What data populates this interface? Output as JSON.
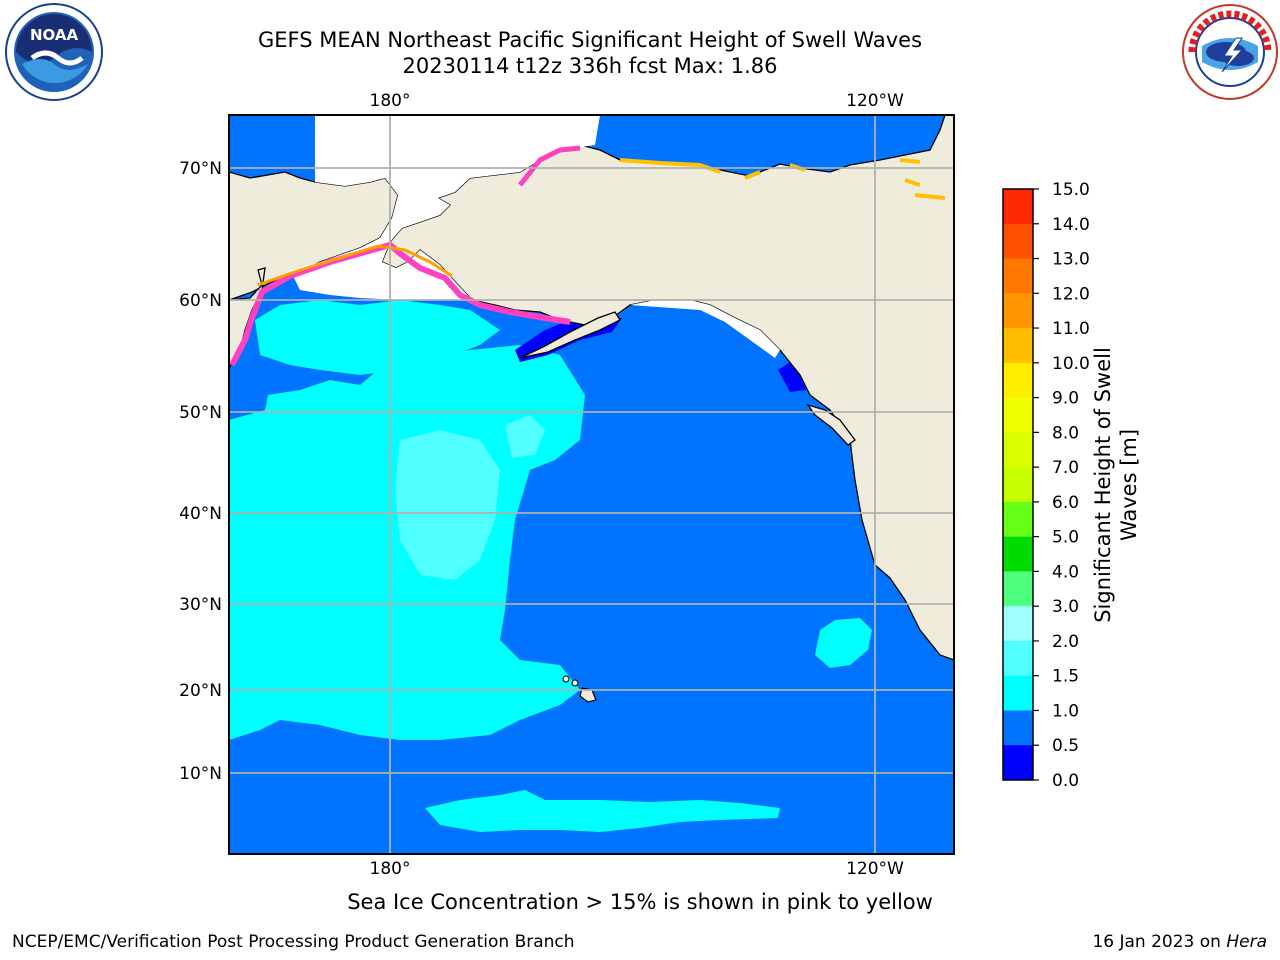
{
  "title": {
    "line1": "GEFS MEAN Northeast Pacific Significant Height of Swell Waves",
    "line2": "20230114 t12z 336h fcst   Max: 1.86"
  },
  "logos": {
    "noaa": {
      "text": "NOAA",
      "ring_text": "NATIONAL OCEANIC AND ATMOSPHERIC ADMINISTRATION · U.S. DEPARTMENT OF COMMERCE"
    },
    "nws": {
      "ring_text": "NATIONAL WEATHER SERVICE"
    }
  },
  "map": {
    "lon_labels_top": [
      "180°",
      "120°W"
    ],
    "lon_labels_bottom": [
      "180°",
      "120°W"
    ],
    "lat_labels": [
      "70°N",
      "60°N",
      "50°N",
      "40°N",
      "30°N",
      "20°N",
      "10°N"
    ],
    "colors": {
      "land": "#efecdc",
      "sea_low": "#0073ff",
      "sea_mid": "#00ffff",
      "sea_ice_shallow": "#0000ff",
      "grid": "#b0b0b0",
      "ice_edge": "#ff40c0"
    }
  },
  "colorbar": {
    "title_line1": "Significant Height of Swell",
    "title_line2": "Waves [m]",
    "ticks": [
      "15.0",
      "14.0",
      "13.0",
      "12.0",
      "11.0",
      "10.0",
      "9.0",
      "8.0",
      "7.0",
      "6.0",
      "5.0",
      "4.0",
      "3.0",
      "2.0",
      "1.5",
      "1.0",
      "0.5",
      "0.0"
    ],
    "colors": [
      "#ff0000",
      "#ff2800",
      "#ff5000",
      "#ff7800",
      "#ff9600",
      "#ffbe00",
      "#ffee00",
      "#f0ff00",
      "#dcff00",
      "#c8ff00",
      "#64ff14",
      "#00dc00",
      "#50ff80",
      "#a0ffff",
      "#50ffff",
      "#00ffff",
      "#0073ff",
      "#0000ff"
    ]
  },
  "note": "Sea Ice Concentration > 15% is shown in pink to yellow",
  "footer": {
    "left": "NCEP/EMC/Verification Post Processing Product Generation Branch",
    "right_prefix": "16 Jan 2023 on ",
    "right_machine": "Hera"
  }
}
